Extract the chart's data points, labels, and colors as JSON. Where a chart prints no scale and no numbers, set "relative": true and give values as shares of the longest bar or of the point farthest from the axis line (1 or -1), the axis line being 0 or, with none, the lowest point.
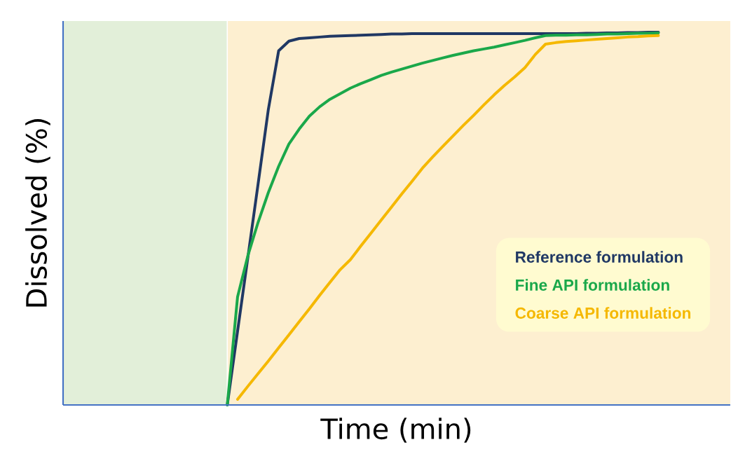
{
  "chart_data": {
    "type": "line",
    "relative": true,
    "xlabel": "Time (min)",
    "ylabel": "Dissolved (%)",
    "marker": "none",
    "line_style": "solid",
    "categories": [
      null,
      null,
      null,
      null,
      null,
      null,
      null,
      null,
      null,
      null,
      null,
      null,
      null,
      null,
      null,
      null,
      null,
      null,
      null,
      null,
      null,
      null,
      null,
      null,
      null,
      null,
      null,
      null,
      null,
      null,
      null,
      null,
      null,
      null,
      null,
      null,
      null,
      null,
      null,
      null,
      null,
      null,
      null,
      null,
      null,
      null,
      null,
      null,
      null,
      null,
      null,
      null,
      null,
      null,
      null,
      null,
      null,
      null,
      null,
      null,
      null,
      null,
      null,
      null,
      null,
      null
    ],
    "series": [
      {
        "name": "Reference formulation",
        "color": "#203864",
        "values": [
          null,
          null,
          null,
          null,
          null,
          null,
          null,
          null,
          null,
          null,
          null,
          null,
          null,
          null,
          null,
          null,
          0,
          0.198,
          0.395,
          0.593,
          0.793,
          0.95,
          0.976,
          0.983,
          0.985,
          0.987,
          0.989,
          0.99,
          0.991,
          0.992,
          0.993,
          0.994,
          0.995,
          0.995,
          0.996,
          0.996,
          0.996,
          0.996,
          0.996,
          0.996,
          0.996,
          0.996,
          0.996,
          0.996,
          0.996,
          0.996,
          0.996,
          0.996,
          0.996,
          0.996,
          0.996,
          0.997,
          0.997,
          0.998,
          0.998,
          0.999,
          0.999,
          1,
          1,
          null,
          null,
          null,
          null,
          null,
          null,
          null
        ]
      },
      {
        "name": "Fine API formulation",
        "color": "#1aa84a",
        "values": [
          null,
          null,
          null,
          null,
          null,
          null,
          null,
          null,
          null,
          null,
          null,
          null,
          null,
          null,
          null,
          null,
          0,
          0.29,
          0.4,
          0.49,
          0.57,
          0.64,
          0.7,
          0.74,
          0.775,
          0.8,
          0.82,
          0.835,
          0.85,
          0.862,
          0.873,
          0.884,
          0.893,
          0.901,
          0.909,
          0.917,
          0.924,
          0.931,
          0.938,
          0.944,
          0.95,
          0.955,
          0.96,
          0.966,
          0.972,
          0.978,
          0.985,
          0.991,
          0.992,
          0.992,
          0.993,
          0.993,
          0.994,
          0.995,
          0.995,
          0.996,
          0.997,
          0.997,
          0.998,
          null,
          null,
          null,
          null,
          null,
          null,
          null
        ]
      },
      {
        "name": "Coarse API formulation",
        "color": "#f5b800",
        "values": [
          null,
          null,
          null,
          null,
          null,
          null,
          null,
          null,
          null,
          null,
          null,
          null,
          null,
          null,
          null,
          null,
          null,
          0.015,
          0.05,
          0.084,
          0.118,
          0.153,
          0.188,
          0.223,
          0.258,
          0.294,
          0.329,
          0.363,
          0.39,
          0.426,
          0.461,
          0.496,
          0.531,
          0.566,
          0.6,
          0.635,
          0.665,
          0.694,
          0.722,
          0.75,
          0.777,
          0.805,
          0.832,
          0.857,
          0.88,
          0.905,
          0.94,
          0.968,
          0.972,
          0.975,
          0.977,
          0.979,
          0.981,
          0.983,
          0.985,
          0.987,
          0.988,
          0.99,
          0.991,
          null,
          null,
          null,
          null,
          null,
          null,
          null
        ]
      }
    ]
  }
}
